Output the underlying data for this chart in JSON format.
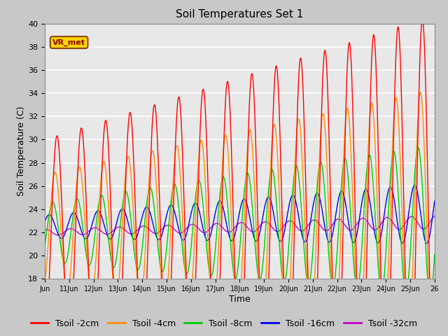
{
  "title": "Soil Temperatures Set 1",
  "xlabel": "Time",
  "ylabel": "Soil Temperature (C)",
  "ylim": [
    18,
    40
  ],
  "series_colors": {
    "Tsoil -2cm": "#FF0000",
    "Tsoil -4cm": "#FF8C00",
    "Tsoil -8cm": "#00CC00",
    "Tsoil -16cm": "#0000EE",
    "Tsoil -32cm": "#CC00CC"
  },
  "xtick_labels": [
    "Jun",
    "11Jun",
    "12Jun",
    "13Jun",
    "14Jun",
    "15Jun",
    "16Jun",
    "17Jun",
    "18Jun",
    "19Jun",
    "20Jun",
    "21Jun",
    "22Jun",
    "23Jun",
    "24Jun",
    "25Jun",
    "26"
  ],
  "annotation_text": "VR_met",
  "figsize": [
    6.4,
    4.8
  ],
  "dpi": 100,
  "title_fontsize": 11,
  "axis_fontsize": 9,
  "legend_fontsize": 9
}
